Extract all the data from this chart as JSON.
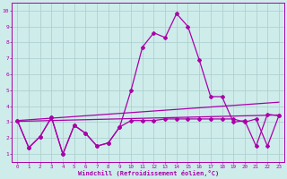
{
  "xlabel": "Windchill (Refroidissement éolien,°C)",
  "xlim": [
    -0.5,
    23.5
  ],
  "ylim": [
    0.5,
    10.5
  ],
  "xticks": [
    0,
    1,
    2,
    3,
    4,
    5,
    6,
    7,
    8,
    9,
    10,
    11,
    12,
    13,
    14,
    15,
    16,
    17,
    18,
    19,
    20,
    21,
    22,
    23
  ],
  "yticks": [
    1,
    2,
    3,
    4,
    5,
    6,
    7,
    8,
    9,
    10
  ],
  "background_color": "#ceecea",
  "grid_color": "#aacccc",
  "line_color": "#aa00aa",
  "line1_y": [
    3.1,
    1.4,
    2.1,
    3.3,
    1.0,
    2.8,
    2.3,
    1.5,
    1.7,
    2.7,
    3.1,
    3.1,
    3.1,
    3.2,
    3.2,
    3.2,
    3.2,
    3.2,
    3.2,
    3.2,
    3.0,
    3.2,
    1.5,
    3.4
  ],
  "line2_y": [
    3.1,
    1.4,
    2.1,
    3.3,
    1.0,
    2.8,
    2.3,
    1.5,
    1.7,
    2.7,
    5.0,
    7.7,
    8.6,
    8.3,
    9.8,
    9.0,
    6.9,
    4.6,
    4.6,
    3.0,
    3.1,
    1.5,
    3.5,
    3.4
  ],
  "line3_y_start": 3.05,
  "line3_y_end": 3.45,
  "line4_y_start": 3.1,
  "line4_y_end": 4.25,
  "marker": "D",
  "markersize": 2,
  "linewidth": 0.9,
  "tick_fontsize": 4.2,
  "xlabel_fontsize": 5.0
}
